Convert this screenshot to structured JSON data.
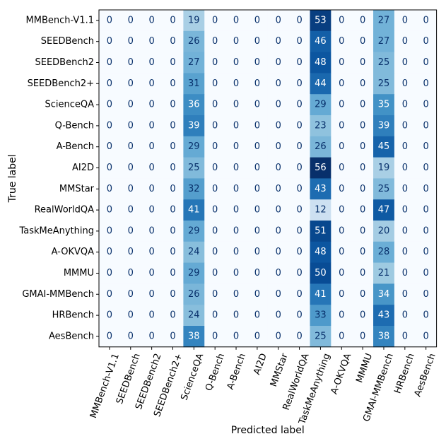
{
  "chart_data": {
    "type": "heatmap",
    "title": "",
    "xlabel": "Predicted label",
    "ylabel": "True label",
    "colormap": "Blues",
    "value_range": [
      0,
      56
    ],
    "labels": [
      "MMBench-V1.1",
      "SEEDBench",
      "SEEDBench2",
      "SEEDBench2+",
      "ScienceQA",
      "Q-Bench",
      "A-Bench",
      "AI2D",
      "MMStar",
      "RealWorldQA",
      "TaskMeAnything",
      "A-OKVQA",
      "MMMU",
      "GMAI-MMBench",
      "HRBench",
      "AesBench"
    ],
    "matrix": [
      [
        0,
        0,
        0,
        0,
        19,
        0,
        0,
        0,
        0,
        0,
        53,
        0,
        0,
        27,
        0,
        0
      ],
      [
        0,
        0,
        0,
        0,
        26,
        0,
        0,
        0,
        0,
        0,
        46,
        0,
        0,
        27,
        0,
        0
      ],
      [
        0,
        0,
        0,
        0,
        27,
        0,
        0,
        0,
        0,
        0,
        48,
        0,
        0,
        25,
        0,
        0
      ],
      [
        0,
        0,
        0,
        0,
        31,
        0,
        0,
        0,
        0,
        0,
        44,
        0,
        0,
        25,
        0,
        0
      ],
      [
        0,
        0,
        0,
        0,
        36,
        0,
        0,
        0,
        0,
        0,
        29,
        0,
        0,
        35,
        0,
        0
      ],
      [
        0,
        0,
        0,
        0,
        39,
        0,
        0,
        0,
        0,
        0,
        23,
        0,
        0,
        39,
        0,
        0
      ],
      [
        0,
        0,
        0,
        0,
        29,
        0,
        0,
        0,
        0,
        0,
        26,
        0,
        0,
        45,
        0,
        0
      ],
      [
        0,
        0,
        0,
        0,
        25,
        0,
        0,
        0,
        0,
        0,
        56,
        0,
        0,
        19,
        0,
        0
      ],
      [
        0,
        0,
        0,
        0,
        32,
        0,
        0,
        0,
        0,
        0,
        43,
        0,
        0,
        25,
        0,
        0
      ],
      [
        0,
        0,
        0,
        0,
        41,
        0,
        0,
        0,
        0,
        0,
        12,
        0,
        0,
        47,
        0,
        0
      ],
      [
        0,
        0,
        0,
        0,
        29,
        0,
        0,
        0,
        0,
        0,
        51,
        0,
        0,
        20,
        0,
        0
      ],
      [
        0,
        0,
        0,
        0,
        24,
        0,
        0,
        0,
        0,
        0,
        48,
        0,
        0,
        28,
        0,
        0
      ],
      [
        0,
        0,
        0,
        0,
        29,
        0,
        0,
        0,
        0,
        0,
        50,
        0,
        0,
        21,
        0,
        0
      ],
      [
        0,
        0,
        0,
        0,
        26,
        0,
        0,
        0,
        0,
        0,
        41,
        0,
        0,
        34,
        0,
        0
      ],
      [
        0,
        0,
        0,
        0,
        24,
        0,
        0,
        0,
        0,
        0,
        33,
        0,
        0,
        43,
        0,
        0
      ],
      [
        0,
        0,
        0,
        0,
        38,
        0,
        0,
        0,
        0,
        0,
        25,
        0,
        0,
        38,
        0,
        0
      ]
    ]
  }
}
